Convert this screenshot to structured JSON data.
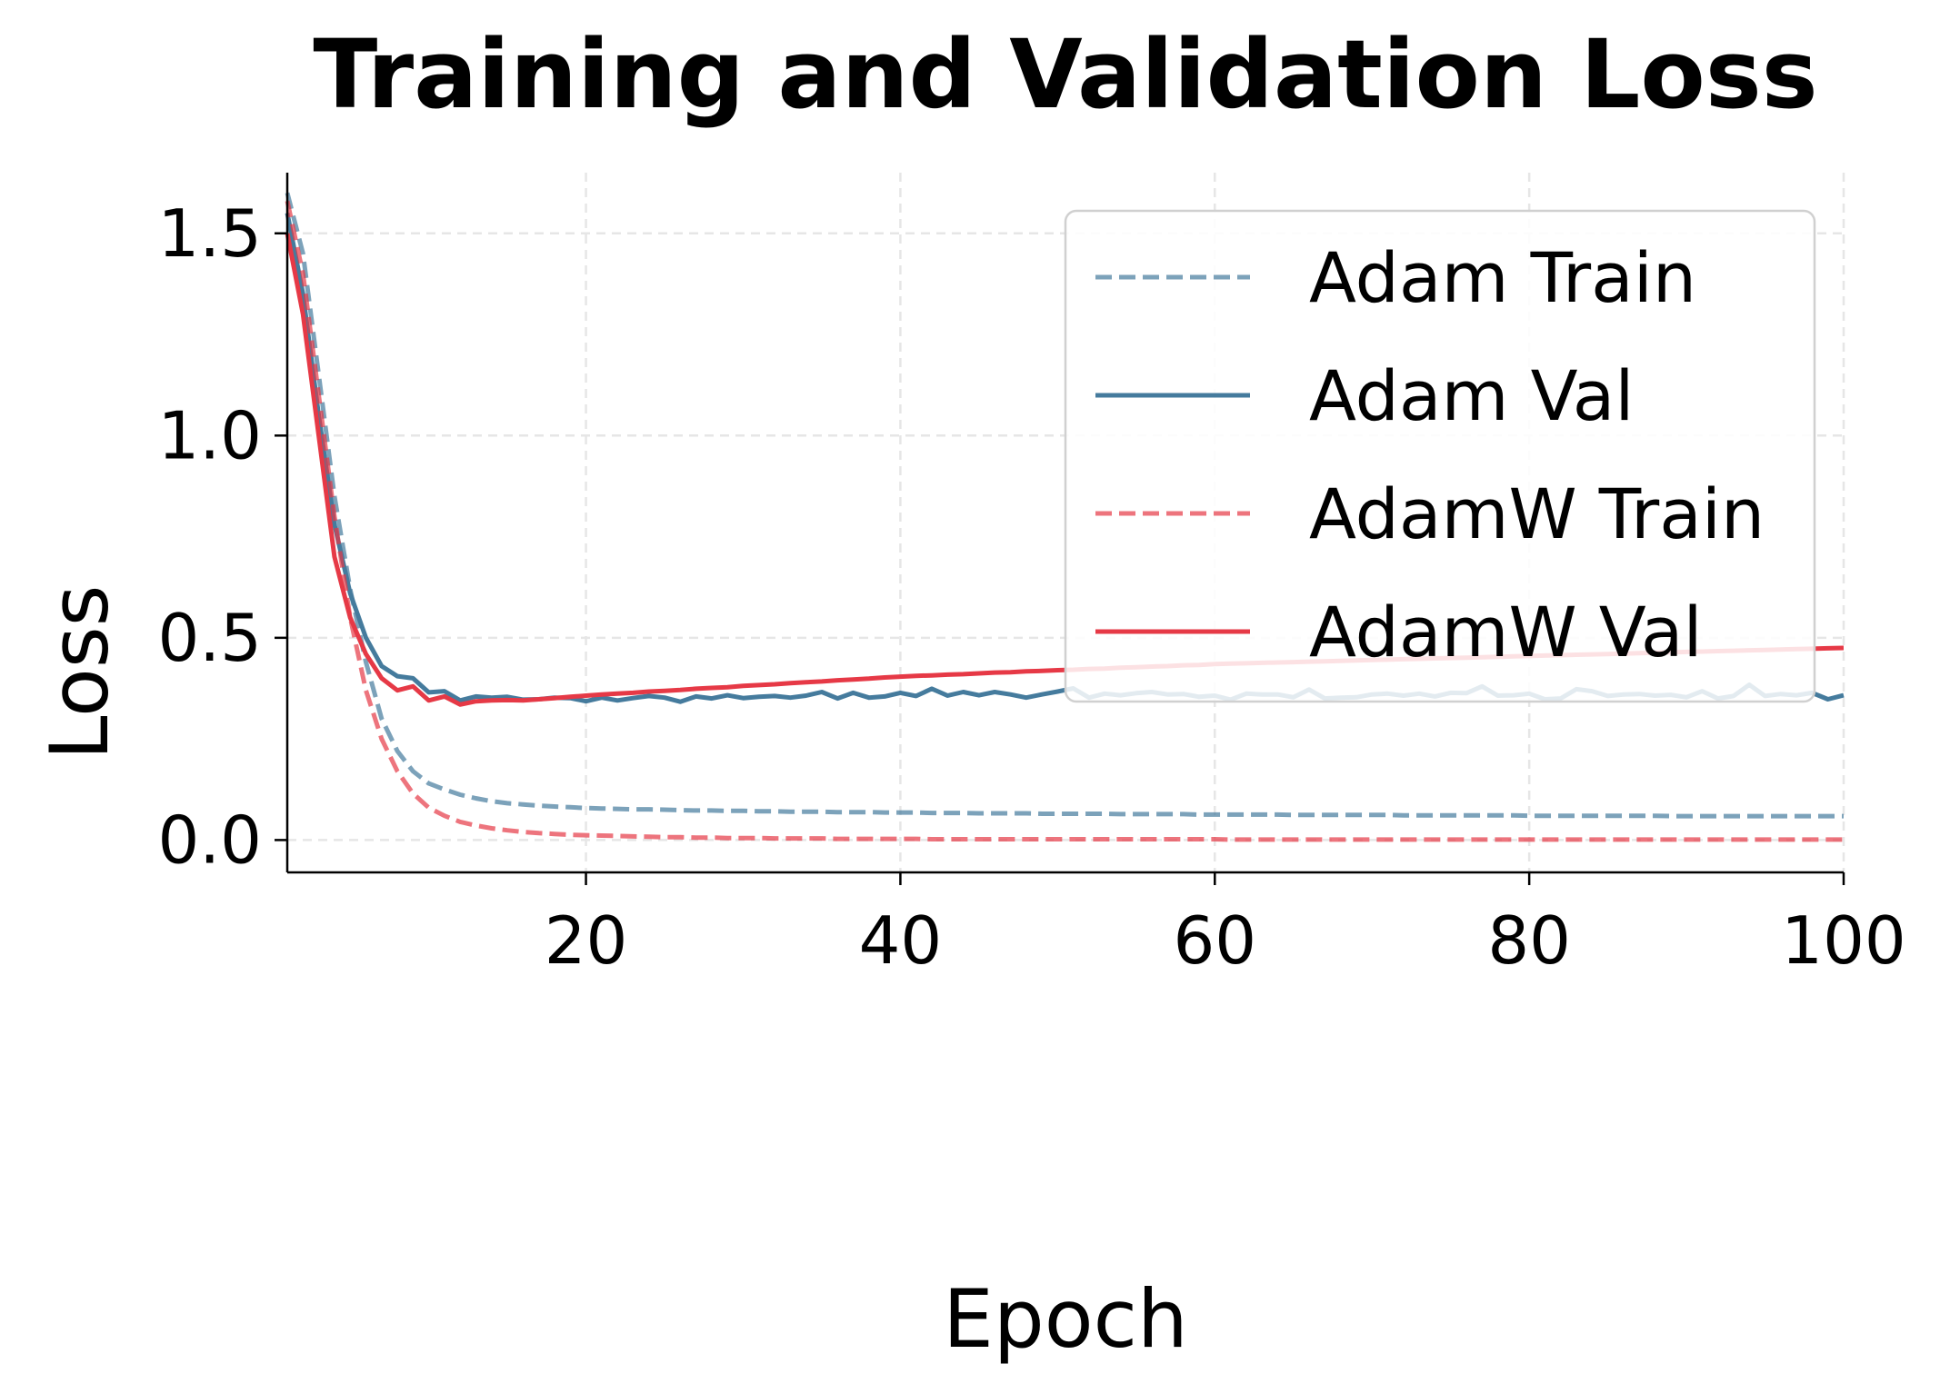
{
  "chart_data": {
    "type": "line",
    "title": "Training and Validation Loss",
    "xlabel": "Epoch",
    "ylabel": "Loss",
    "xlim": [
      1,
      100
    ],
    "ylim": [
      -0.08,
      1.65
    ],
    "xticks": [
      20,
      40,
      60,
      80,
      100
    ],
    "xtick_labels": [
      "20",
      "40",
      "60",
      "80",
      "100"
    ],
    "yticks": [
      0.0,
      0.5,
      1.0,
      1.5
    ],
    "ytick_labels": [
      "0.0",
      "0.5",
      "1.0",
      "1.5"
    ],
    "grid": true,
    "legend_position": "upper-right",
    "x": "1..100",
    "series": [
      {
        "name": "Adam Train",
        "color": "#457b9d",
        "style": "dashed",
        "opacity": 0.7,
        "values": [
          1.6,
          1.45,
          1.15,
          0.85,
          0.62,
          0.44,
          0.3,
          0.22,
          0.17,
          0.14,
          0.125,
          0.112,
          0.103,
          0.096,
          0.091,
          0.088,
          0.085,
          0.083,
          0.081,
          0.079,
          0.078,
          0.077,
          0.076,
          0.076,
          0.075,
          0.074,
          0.073,
          0.073,
          0.072,
          0.072,
          0.071,
          0.071,
          0.07,
          0.07,
          0.07,
          0.069,
          0.069,
          0.069,
          0.068,
          0.068,
          0.068,
          0.067,
          0.067,
          0.067,
          0.066,
          0.066,
          0.066,
          0.066,
          0.065,
          0.065,
          0.065,
          0.065,
          0.065,
          0.064,
          0.064,
          0.064,
          0.064,
          0.064,
          0.063,
          0.063,
          0.063,
          0.063,
          0.063,
          0.063,
          0.062,
          0.062,
          0.062,
          0.062,
          0.062,
          0.062,
          0.062,
          0.061,
          0.061,
          0.061,
          0.061,
          0.061,
          0.061,
          0.061,
          0.061,
          0.06,
          0.06,
          0.06,
          0.06,
          0.06,
          0.06,
          0.06,
          0.06,
          0.06,
          0.059,
          0.059,
          0.059,
          0.059,
          0.059,
          0.059,
          0.059,
          0.059,
          0.059,
          0.059,
          0.059,
          0.059
        ]
      },
      {
        "name": "Adam Val",
        "color": "#457b9d",
        "style": "solid",
        "opacity": 1,
        "values": [
          1.55,
          1.35,
          1.05,
          0.78,
          0.61,
          0.5,
          0.43,
          0.405,
          0.4,
          0.365,
          0.368,
          0.345,
          0.355,
          0.352,
          0.354,
          0.347,
          0.348,
          0.352,
          0.351,
          0.343,
          0.352,
          0.345,
          0.351,
          0.356,
          0.352,
          0.342,
          0.355,
          0.35,
          0.358,
          0.351,
          0.354,
          0.356,
          0.352,
          0.357,
          0.366,
          0.35,
          0.364,
          0.352,
          0.355,
          0.364,
          0.356,
          0.374,
          0.357,
          0.366,
          0.358,
          0.366,
          0.36,
          0.352,
          0.36,
          0.367,
          0.375,
          0.352,
          0.362,
          0.358,
          0.363,
          0.366,
          0.36,
          0.361,
          0.354,
          0.357,
          0.347,
          0.362,
          0.36,
          0.36,
          0.353,
          0.372,
          0.35,
          0.352,
          0.353,
          0.36,
          0.362,
          0.357,
          0.362,
          0.355,
          0.364,
          0.363,
          0.38,
          0.357,
          0.358,
          0.362,
          0.348,
          0.35,
          0.373,
          0.368,
          0.356,
          0.36,
          0.361,
          0.357,
          0.359,
          0.353,
          0.368,
          0.35,
          0.356,
          0.384,
          0.356,
          0.361,
          0.358,
          0.364,
          0.348,
          0.358
        ]
      },
      {
        "name": "AdamW Train",
        "color": "#e63946",
        "style": "dashed",
        "opacity": 0.7,
        "values": [
          1.58,
          1.4,
          1.1,
          0.8,
          0.55,
          0.37,
          0.25,
          0.17,
          0.115,
          0.08,
          0.06,
          0.045,
          0.036,
          0.029,
          0.024,
          0.02,
          0.017,
          0.015,
          0.013,
          0.012,
          0.011,
          0.01,
          0.009,
          0.008,
          0.007,
          0.007,
          0.006,
          0.006,
          0.005,
          0.005,
          0.005,
          0.004,
          0.004,
          0.004,
          0.004,
          0.003,
          0.003,
          0.003,
          0.003,
          0.003,
          0.003,
          0.002,
          0.002,
          0.002,
          0.002,
          0.002,
          0.002,
          0.002,
          0.002,
          0.002,
          0.002,
          0.002,
          0.002,
          0.002,
          0.002,
          0.002,
          0.002,
          0.002,
          0.002,
          0.002,
          0.001,
          0.001,
          0.001,
          0.001,
          0.001,
          0.001,
          0.001,
          0.001,
          0.001,
          0.001,
          0.001,
          0.001,
          0.001,
          0.001,
          0.001,
          0.001,
          0.001,
          0.001,
          0.001,
          0.001,
          0.001,
          0.001,
          0.001,
          0.001,
          0.001,
          0.001,
          0.001,
          0.001,
          0.001,
          0.001,
          0.001,
          0.001,
          0.001,
          0.001,
          0.001,
          0.001,
          0.001,
          0.001,
          0.001,
          0.001
        ]
      },
      {
        "name": "AdamW Val",
        "color": "#e63946",
        "style": "solid",
        "opacity": 1,
        "values": [
          1.5,
          1.3,
          1.0,
          0.7,
          0.55,
          0.46,
          0.4,
          0.37,
          0.38,
          0.345,
          0.355,
          0.335,
          0.343,
          0.345,
          0.346,
          0.345,
          0.348,
          0.351,
          0.354,
          0.357,
          0.36,
          0.362,
          0.364,
          0.367,
          0.369,
          0.371,
          0.374,
          0.376,
          0.378,
          0.381,
          0.383,
          0.385,
          0.388,
          0.39,
          0.392,
          0.395,
          0.397,
          0.399,
          0.402,
          0.404,
          0.406,
          0.407,
          0.409,
          0.41,
          0.412,
          0.414,
          0.415,
          0.417,
          0.418,
          0.42,
          0.421,
          0.423,
          0.424,
          0.426,
          0.427,
          0.429,
          0.43,
          0.432,
          0.433,
          0.435,
          0.436,
          0.437,
          0.438,
          0.439,
          0.44,
          0.441,
          0.442,
          0.443,
          0.444,
          0.445,
          0.446,
          0.447,
          0.448,
          0.449,
          0.45,
          0.451,
          0.452,
          0.453,
          0.454,
          0.455,
          0.456,
          0.457,
          0.458,
          0.459,
          0.46,
          0.461,
          0.462,
          0.463,
          0.464,
          0.465,
          0.466,
          0.467,
          0.468,
          0.469,
          0.47,
          0.471,
          0.472,
          0.473,
          0.474,
          0.475
        ]
      }
    ]
  }
}
